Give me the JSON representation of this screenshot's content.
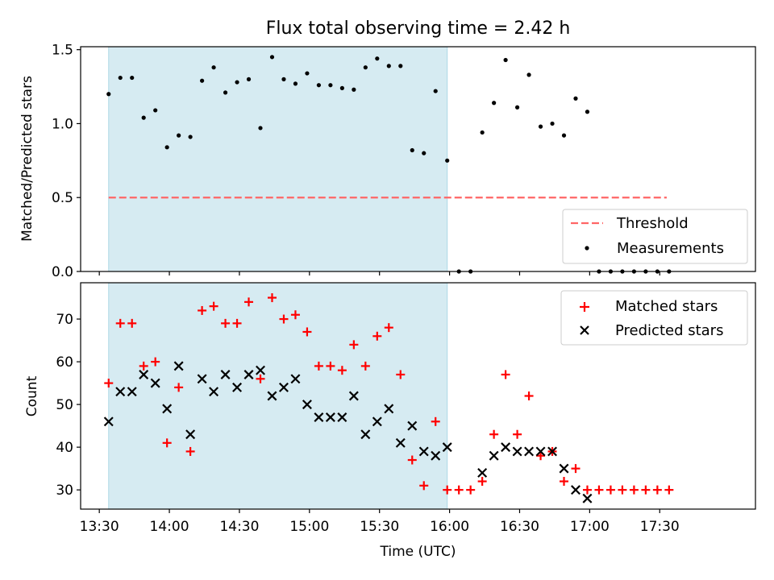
{
  "chart_data": [
    {
      "type": "scatter",
      "title": "Flux total observing time = 2.42 h",
      "xlabel": "",
      "ylabel": "Matched/Predicted stars",
      "xlim_minutes": [
        802,
        1091
      ],
      "ylim": [
        0,
        1.52
      ],
      "yticks": [
        0.0,
        0.5,
        1.0,
        1.5
      ],
      "ytick_labels": [
        "0.0",
        "0.5",
        "1.0",
        "1.5"
      ],
      "xticks_minutes": [
        810,
        840,
        870,
        900,
        930,
        960,
        990,
        1020,
        1050
      ],
      "shaded_span_minutes": [
        814,
        959
      ],
      "shade_color": "#add8e6",
      "legend_position": "lower-right",
      "threshold": {
        "name": "Threshold",
        "value": 0.5,
        "x_from": 814,
        "x_to": 1053,
        "color": "#ff6666"
      },
      "series": [
        {
          "name": "Measurements",
          "color": "#000000",
          "x": [
            814,
            819,
            824,
            829,
            834,
            839,
            844,
            849,
            854,
            859,
            864,
            869,
            874,
            879,
            884,
            889,
            894,
            899,
            904,
            909,
            914,
            919,
            924,
            929,
            934,
            939,
            944,
            949,
            954,
            959,
            964,
            969,
            974,
            979,
            984,
            989,
            994,
            999,
            1004,
            1009,
            1014,
            1019,
            1024,
            1029,
            1034,
            1039,
            1044,
            1049,
            1054
          ],
          "y": [
            1.2,
            1.31,
            1.31,
            1.04,
            1.09,
            0.84,
            0.92,
            0.91,
            1.29,
            1.38,
            1.21,
            1.28,
            1.3,
            0.97,
            1.45,
            1.3,
            1.27,
            1.34,
            1.26,
            1.26,
            1.24,
            1.23,
            1.38,
            1.44,
            1.39,
            1.39,
            0.82,
            0.8,
            1.22,
            0.75,
            0.0,
            0.0,
            0.94,
            1.14,
            1.43,
            1.11,
            1.33,
            0.98,
            1.0,
            0.92,
            1.17,
            1.08,
            0.0,
            0.0,
            0.0,
            0.0,
            0.0,
            0.0,
            0.0
          ]
        }
      ]
    },
    {
      "type": "scatter",
      "title": "",
      "xlabel": "Time (UTC)",
      "ylabel": "Count",
      "xlim_minutes": [
        802,
        1091
      ],
      "ylim": [
        25.5,
        78.5
      ],
      "yticks": [
        30,
        40,
        50,
        60,
        70
      ],
      "ytick_labels": [
        "30",
        "40",
        "50",
        "60",
        "70"
      ],
      "xticks_minutes": [
        810,
        840,
        870,
        900,
        930,
        960,
        990,
        1020,
        1050
      ],
      "xtick_labels": [
        "13:30",
        "14:00",
        "14:30",
        "15:00",
        "15:30",
        "16:00",
        "16:30",
        "17:00",
        "17:30"
      ],
      "shaded_span_minutes": [
        814,
        959
      ],
      "shade_color": "#add8e6",
      "legend_position": "top-right",
      "series": [
        {
          "name": "Matched stars",
          "marker": "plus",
          "color": "#ff0000",
          "x": [
            814,
            819,
            824,
            829,
            834,
            839,
            844,
            849,
            854,
            859,
            864,
            869,
            874,
            879,
            884,
            889,
            894,
            899,
            904,
            909,
            914,
            919,
            924,
            929,
            934,
            939,
            944,
            949,
            954,
            959,
            964,
            969,
            974,
            979,
            984,
            989,
            994,
            999,
            1004,
            1009,
            1014,
            1019,
            1024,
            1029,
            1034,
            1039,
            1044,
            1049,
            1054
          ],
          "y": [
            55,
            69,
            69,
            59,
            60,
            41,
            54,
            39,
            72,
            73,
            69,
            69,
            74,
            56,
            75,
            70,
            71,
            67,
            59,
            59,
            58,
            64,
            59,
            66,
            68,
            57,
            37,
            31,
            46,
            30,
            30,
            30,
            32,
            43,
            57,
            43,
            52,
            38,
            39,
            32,
            35,
            30,
            30,
            30,
            30,
            30,
            30,
            30,
            30
          ]
        },
        {
          "name": "Predicted stars",
          "marker": "x",
          "color": "#000000",
          "x": [
            814,
            819,
            824,
            829,
            834,
            839,
            844,
            849,
            854,
            859,
            864,
            869,
            874,
            879,
            884,
            889,
            894,
            899,
            904,
            909,
            914,
            919,
            924,
            929,
            934,
            939,
            944,
            949,
            954,
            959,
            974,
            979,
            984,
            989,
            994,
            999,
            1004,
            1009,
            1014,
            1019
          ],
          "y": [
            46,
            53,
            53,
            57,
            55,
            49,
            59,
            43,
            56,
            53,
            57,
            54,
            57,
            58,
            52,
            54,
            56,
            50,
            47,
            47,
            47,
            52,
            43,
            46,
            49,
            41,
            45,
            39,
            38,
            40,
            34,
            38,
            40,
            39,
            39,
            39,
            39,
            35,
            30,
            28
          ]
        }
      ]
    }
  ]
}
